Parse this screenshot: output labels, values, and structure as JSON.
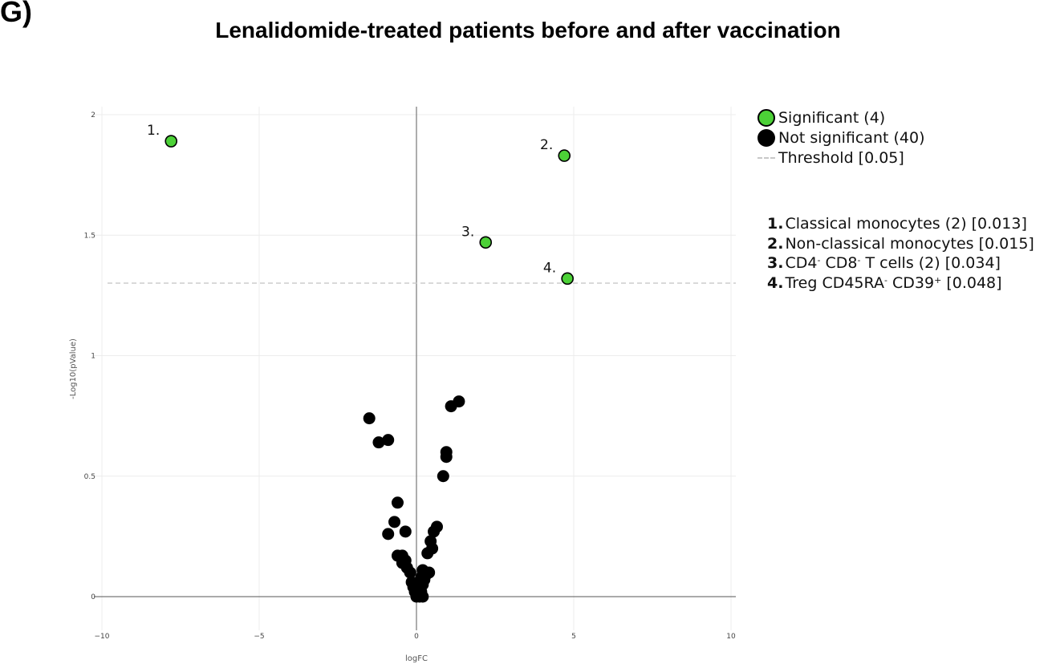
{
  "panel_label": "G)",
  "colors": {
    "significant": "#4cd137",
    "not_significant": "#000000",
    "threshold": "#c8c8c8",
    "grid": "#ececec",
    "axis": "#555555"
  },
  "chart_data": {
    "type": "scatter",
    "title": "Lenalidomide-treated patients before and after vaccination",
    "xlabel": "logFC",
    "ylabel": "-Log10(pValue)",
    "xlim": [
      -10,
      10
    ],
    "ylim": [
      0,
      2
    ],
    "xticks": [
      -10,
      -5,
      0,
      5,
      10
    ],
    "xtick_labels": [
      "−10",
      "−5",
      "0",
      "5",
      "10"
    ],
    "yticks": [
      0,
      0.5,
      1,
      1.5,
      2
    ],
    "ytick_labels": [
      "0",
      "0.5",
      "1",
      "1.5",
      "2"
    ],
    "grid": true,
    "legend_position": "right",
    "threshold": {
      "y": 1.301,
      "style": "dashed",
      "label": "Threshold [0.05]"
    },
    "series": [
      {
        "name": "Significant (4)",
        "color": "#4cd137",
        "points": [
          {
            "x": -7.8,
            "y": 1.89,
            "label": "1."
          },
          {
            "x": 4.7,
            "y": 1.83,
            "label": "2."
          },
          {
            "x": 2.2,
            "y": 1.47,
            "label": "3."
          },
          {
            "x": 4.8,
            "y": 1.32,
            "label": "4."
          }
        ]
      },
      {
        "name": "Not significant (40)",
        "color": "#000000",
        "points": [
          {
            "x": -1.5,
            "y": 0.74
          },
          {
            "x": -1.2,
            "y": 0.64
          },
          {
            "x": -0.9,
            "y": 0.65
          },
          {
            "x": 1.1,
            "y": 0.79
          },
          {
            "x": 1.35,
            "y": 0.81
          },
          {
            "x": 0.95,
            "y": 0.6
          },
          {
            "x": 0.95,
            "y": 0.58
          },
          {
            "x": 0.85,
            "y": 0.5
          },
          {
            "x": -0.6,
            "y": 0.39
          },
          {
            "x": -0.7,
            "y": 0.31
          },
          {
            "x": -0.35,
            "y": 0.27
          },
          {
            "x": -0.9,
            "y": 0.26
          },
          {
            "x": 0.65,
            "y": 0.29
          },
          {
            "x": 0.55,
            "y": 0.27
          },
          {
            "x": 0.45,
            "y": 0.23
          },
          {
            "x": 0.5,
            "y": 0.2
          },
          {
            "x": 0.35,
            "y": 0.18
          },
          {
            "x": -0.6,
            "y": 0.17
          },
          {
            "x": -0.45,
            "y": 0.17
          },
          {
            "x": -0.35,
            "y": 0.15
          },
          {
            "x": -0.45,
            "y": 0.14
          },
          {
            "x": -0.2,
            "y": 0.1
          },
          {
            "x": 0.2,
            "y": 0.11
          },
          {
            "x": 0.3,
            "y": 0.1
          },
          {
            "x": 0.15,
            "y": 0.08
          },
          {
            "x": 0.25,
            "y": 0.07
          },
          {
            "x": -0.1,
            "y": 0.04
          },
          {
            "x": 0.05,
            "y": 0.04
          },
          {
            "x": 0.2,
            "y": 0.05
          },
          {
            "x": 0.1,
            "y": 0.03
          },
          {
            "x": -0.05,
            "y": 0.02
          },
          {
            "x": 0.05,
            "y": 0.01
          },
          {
            "x": 0.15,
            "y": 0.02
          },
          {
            "x": 0.0,
            "y": 0.0
          },
          {
            "x": 0.1,
            "y": 0.0
          },
          {
            "x": -0.15,
            "y": 0.06
          },
          {
            "x": 0.3,
            "y": 0.09
          },
          {
            "x": -0.3,
            "y": 0.12
          },
          {
            "x": 0.4,
            "y": 0.1
          },
          {
            "x": 0.2,
            "y": 0.0
          }
        ]
      }
    ]
  },
  "legend": {
    "significant": "Significant (4)",
    "not_significant": "Not significant (40)",
    "threshold": "Threshold [0.05]"
  },
  "key": [
    {
      "num": "1.",
      "text": "Classical monocytes (2) [0.013]"
    },
    {
      "num": "2.",
      "text": "Non-classical monocytes [0.015]"
    },
    {
      "num": "3.",
      "pre": "CD4",
      "sup1": "-",
      "mid": " CD8",
      "sup2": "-",
      "post": " T cells (2) [0.034]"
    },
    {
      "num": "4.",
      "pre": "Treg CD45RA",
      "sup1": "-",
      "mid": " CD39",
      "sup2": "+",
      "post": " [0.048]"
    }
  ]
}
